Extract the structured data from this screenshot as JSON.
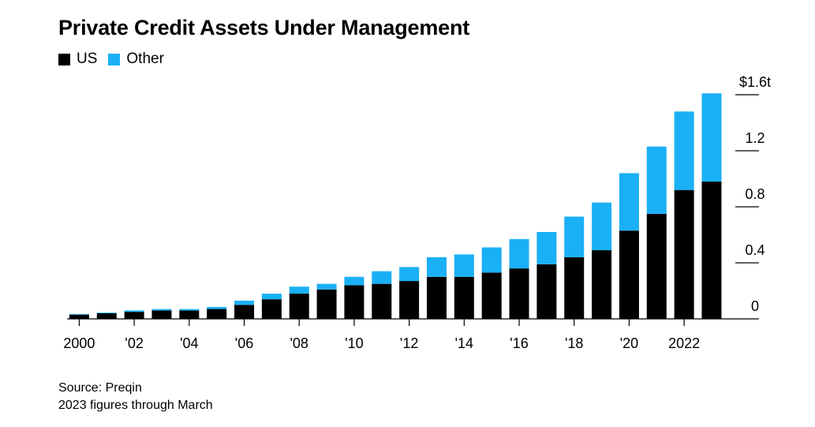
{
  "chart_data": {
    "type": "bar",
    "stacked": true,
    "title": "Private Credit Assets Under Management",
    "legend": [
      {
        "name": "US",
        "color": "#000000"
      },
      {
        "name": "Other",
        "color": "#1ab0f5"
      }
    ],
    "legend_position": "top-left",
    "categories": [
      "2000",
      "2001",
      "2002",
      "2003",
      "2004",
      "2005",
      "2006",
      "2007",
      "2008",
      "2009",
      "2010",
      "2011",
      "2012",
      "2013",
      "2014",
      "2015",
      "2016",
      "2017",
      "2018",
      "2019",
      "2020",
      "2021",
      "2022",
      "2023"
    ],
    "series": [
      {
        "name": "US",
        "color": "#000000",
        "values": [
          0.03,
          0.04,
          0.05,
          0.06,
          0.06,
          0.07,
          0.1,
          0.14,
          0.18,
          0.21,
          0.24,
          0.25,
          0.27,
          0.3,
          0.3,
          0.33,
          0.36,
          0.39,
          0.44,
          0.49,
          0.63,
          0.75,
          0.92,
          0.98
        ]
      },
      {
        "name": "Other",
        "color": "#1ab0f5",
        "values": [
          0.005,
          0.005,
          0.01,
          0.01,
          0.01,
          0.015,
          0.03,
          0.04,
          0.05,
          0.04,
          0.06,
          0.09,
          0.1,
          0.14,
          0.16,
          0.18,
          0.21,
          0.23,
          0.29,
          0.34,
          0.41,
          0.48,
          0.56,
          0.63
        ]
      }
    ],
    "x_tick_labels": [
      "2000",
      "'02",
      "'04",
      "'06",
      "'08",
      "'10",
      "'12",
      "'14",
      "'16",
      "'18",
      "'20",
      "2022"
    ],
    "y_ticks": [
      0,
      0.4,
      0.8,
      1.2,
      1.6
    ],
    "y_tick_labels": [
      "0",
      "0.4",
      "0.8",
      "1.2",
      "$1.6t"
    ],
    "ylim": [
      0,
      1.6
    ],
    "y_axis_side": "right",
    "grid": false
  },
  "footer": {
    "source": "Source: Preqin",
    "note": "2023 figures through March"
  }
}
